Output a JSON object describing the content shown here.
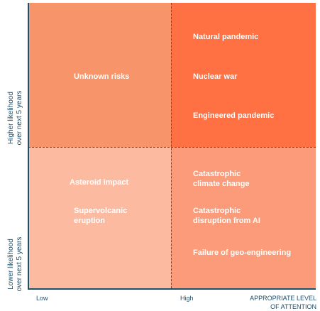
{
  "colors": {
    "high_likelihood_low_attention": "#f8946a",
    "high_likelihood_high_attention": "#ff7043",
    "low_likelihood_low_attention": "#fcbba1",
    "low_likelihood_high_attention": "#fb9b79",
    "axis": "#1f4f6b"
  },
  "axes": {
    "y_high": "Higher likelihood\nover next 5 years",
    "y_low": "Lower likelihood\nover next 5 years",
    "x_low": "Low",
    "x_high": "High",
    "x_title": "APPROPRIATE LEVEL\nOF ATTENTION"
  },
  "quadrants": {
    "top_left": [
      "Unknown risks"
    ],
    "top_right": [
      "Natural pandemic",
      "Nuclear war",
      "Engineered pandemic"
    ],
    "bottom_left": [
      "Asteroid impact",
      "Supervolcanic\neruption"
    ],
    "bottom_right": [
      "Catastrophic\nclimate change",
      "Catastrophic\ndisruption from AI",
      "Failure of geo-engineering"
    ]
  }
}
